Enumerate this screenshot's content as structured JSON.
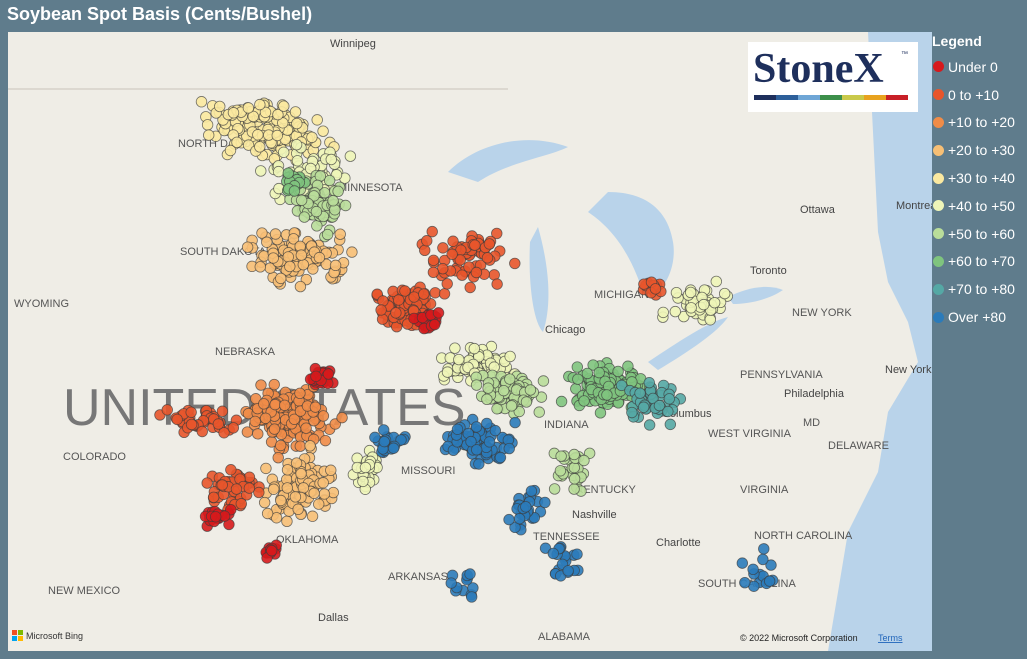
{
  "header": {
    "title": "Soybean Spot Basis (Cents/Bushel)"
  },
  "legend": {
    "title": "Legend",
    "items": [
      {
        "label": "Under 0",
        "color": "#d7191c"
      },
      {
        "label": "0 to +10",
        "color": "#e8552b"
      },
      {
        "label": "+10 to +20",
        "color": "#f08c48"
      },
      {
        "label": "+20 to +30",
        "color": "#f7bf75"
      },
      {
        "label": "+30 to +40",
        "color": "#fbe9a0"
      },
      {
        "label": "+40 to +50",
        "color": "#eef5b8"
      },
      {
        "label": "+50 to +60",
        "color": "#b9dd9a"
      },
      {
        "label": "+60 to +70",
        "color": "#7fc47e"
      },
      {
        "label": "+70 to +80",
        "color": "#55a8a5"
      },
      {
        "label": "Over +80",
        "color": "#2b7bba"
      }
    ]
  },
  "logo": {
    "text": "StoneX",
    "mark": "™"
  },
  "map": {
    "country": "UNITED STATES",
    "places": [
      "Winnipeg",
      "NORTH DAKOTA",
      "MINNESOTA",
      "SOUTH DAKOTA",
      "WYOMING",
      "NEBRASKA",
      "COLORADO",
      "MISSOURI",
      "Chicago",
      "MICHIGAN",
      "Toronto",
      "Ottawa",
      "Montreal",
      "NEW YORK",
      "New York",
      "PENNSYLVANIA",
      "Philadelphia",
      "Columbus",
      "WEST VIRGINIA",
      "INDIANA",
      "KENTUCKY",
      "VIRGINIA",
      "Nashville",
      "TENNESSEE",
      "NORTH CAROLINA",
      "Charlotte",
      "OKLAHOMA",
      "ARKANSAS",
      "SOUTH CAROLINA",
      "NEW MEXICO",
      "Dallas",
      "ALABAMA",
      "MD",
      "DELAWARE"
    ]
  },
  "attribution": {
    "provider": "Microsoft Bing",
    "copyright": "© 2022 Microsoft Corporation",
    "terms": "Terms"
  }
}
